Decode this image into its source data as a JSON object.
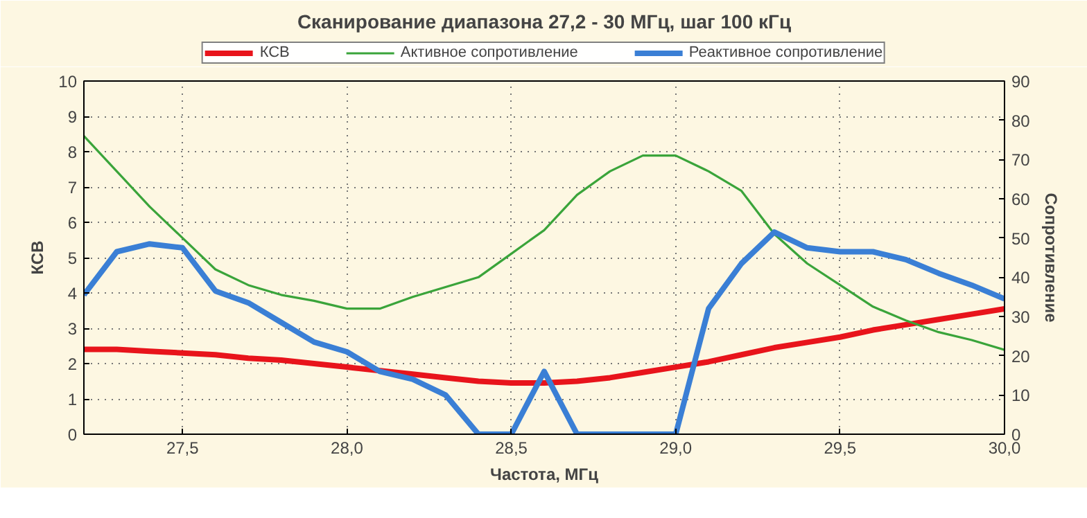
{
  "chart_data": {
    "type": "line",
    "title": "Сканирование диапазона 27,2 - 30 МГц, шаг 100 кГц",
    "xlabel": "Частота, МГц",
    "ylabel": "КСВ",
    "y2label": "Сопротивление",
    "x": [
      27.2,
      27.3,
      27.4,
      27.5,
      27.6,
      27.7,
      27.8,
      27.9,
      28.0,
      28.1,
      28.2,
      28.3,
      28.4,
      28.5,
      28.6,
      28.7,
      28.8,
      28.9,
      29.0,
      29.1,
      29.2,
      29.3,
      29.4,
      29.5,
      29.6,
      29.7,
      29.8,
      29.9,
      30.0
    ],
    "series": [
      {
        "name": "КСВ",
        "color": "#e8141b",
        "values": [
          2.4,
          2.4,
          2.35,
          2.3,
          2.25,
          2.15,
          2.1,
          2.0,
          1.9,
          1.8,
          1.7,
          1.6,
          1.5,
          1.45,
          1.45,
          1.5,
          1.6,
          1.75,
          1.9,
          2.05,
          2.25,
          2.45,
          2.6,
          2.75,
          2.95,
          3.1,
          3.25,
          3.4,
          3.55
        ]
      },
      {
        "name": "Активное сопротивление",
        "color": "#3aa43a",
        "axis": "y2",
        "values": [
          76,
          67,
          58,
          50,
          42,
          38,
          35.5,
          34,
          32,
          32,
          35,
          37.5,
          40,
          46,
          52,
          61,
          67,
          71,
          71,
          67,
          62,
          51,
          43.5,
          38,
          32.5,
          29,
          26,
          24,
          21.5
        ]
      },
      {
        "name": "Реактивное сопротивление",
        "color": "#3a7fd5",
        "axis": "y2",
        "values": [
          35.5,
          46.5,
          48.5,
          47.5,
          36.5,
          33.5,
          28.5,
          23.5,
          21,
          16,
          14,
          10,
          0,
          0,
          16,
          0,
          0,
          0,
          0,
          32,
          43.5,
          51.5,
          47.5,
          46.5,
          46.5,
          44.5,
          41,
          38,
          34.5
        ]
      }
    ],
    "xlim": [
      27.2,
      30.0
    ],
    "xticks": [
      {
        "value": 27.5,
        "label": "27,5"
      },
      {
        "value": 28.0,
        "label": "28,0"
      },
      {
        "value": 28.5,
        "label": "28,5"
      },
      {
        "value": 29.0,
        "label": "29,0"
      },
      {
        "value": 29.5,
        "label": "29,5"
      },
      {
        "value": 30.0,
        "label": "30,0"
      }
    ],
    "ylim": [
      0,
      10
    ],
    "yticks": [
      0,
      1,
      2,
      3,
      4,
      5,
      6,
      7,
      8,
      9,
      10
    ],
    "y2lim": [
      0,
      90
    ],
    "y2ticks": [
      0,
      10,
      20,
      30,
      40,
      50,
      60,
      70,
      80,
      90
    ],
    "grid": true,
    "legend": "top",
    "marker": "none",
    "line_style": "solid"
  }
}
